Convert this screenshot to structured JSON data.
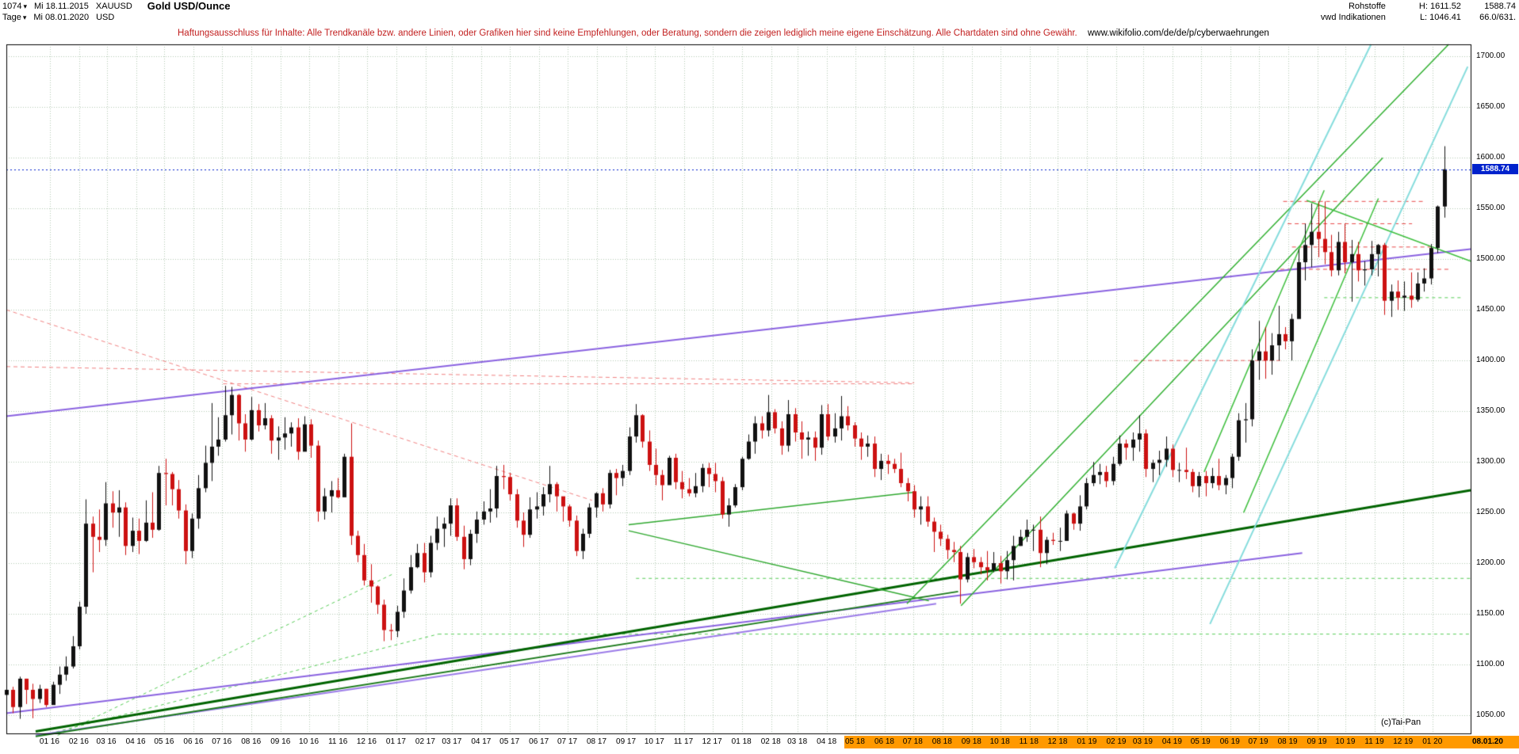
{
  "header": {
    "bars_count": "1074",
    "start_date": "Mi 18.11.2015",
    "symbol": "XAUUSD",
    "period": "Tage",
    "end_date": "Mi 08.01.2020",
    "currency": "USD",
    "title": "Gold USD/Ounce",
    "category": "Rohstoffe",
    "provider": "vwd Indikationen",
    "high_label": "H: 1611.52",
    "low_label": "L: 1046.41",
    "last_price": "1588.74",
    "range_info": "66.0/631."
  },
  "disclaimer": {
    "text": "Haftungsausschluss für Inhalte: Alle Trendkanäle bzw. andere Linien, oder Grafiken hier sind keine Empfehlungen, oder Beratung, sondern die zeigen lediglich meine eigene Einschätzung. Alle Chartdaten sind ohne Gewähr.",
    "url": "www.wikifolio.com/de/de/p/cyberwaehrungen"
  },
  "watermark": "(c)Tai-Pan",
  "chart_data": {
    "type": "candlestick",
    "title": "Gold USD/Ounce",
    "symbol": "XAUUSD",
    "currency": "USD",
    "period": "Tage",
    "range_start": "Mi 18.11.2015",
    "range_end": "Mi 08.01.2020",
    "high": 1611.52,
    "low": 1046.41,
    "last": 1588.74,
    "note": "weekly approximation of daily candles; each candle [high, low, close], open = previous close",
    "first_open": 1070,
    "start_date": "2015-11-16",
    "y_axis": {
      "min": 1032,
      "max": 1712,
      "tick_step": 50,
      "ticks": [
        1050,
        1100,
        1150,
        1200,
        1250,
        1300,
        1350,
        1400,
        1450,
        1500,
        1550,
        1600,
        1650,
        1700
      ]
    },
    "x_axis": {
      "month_labels": [
        "01 16",
        "02 16",
        "03 16",
        "04 16",
        "05 16",
        "06 16",
        "07 16",
        "08 16",
        "09 16",
        "10 16",
        "11 16",
        "12 16",
        "01 17",
        "02 17",
        "03 17",
        "04 17",
        "05 17",
        "06 17",
        "07 17",
        "08 17",
        "09 17",
        "10 17",
        "11 17",
        "12 17",
        "01 18",
        "02 18",
        "03 18",
        "04 18",
        "05 18",
        "06 18",
        "07 18",
        "08 18",
        "09 18",
        "10 18",
        "11 18",
        "12 18",
        "01 19",
        "02 19",
        "03 19",
        "04 19",
        "05 19",
        "06 19",
        "07 19",
        "08 19",
        "09 19",
        "10 19",
        "11 19",
        "12 19",
        "01 20"
      ],
      "highlight_from_index": 28,
      "end_label": "08.01.20"
    },
    "current_price_line": {
      "value": 1588.74,
      "color": "#0022CC"
    },
    "colors": {
      "grid": "#B2C9B2",
      "candle_up": "#111111",
      "candle_down": "#CC1111",
      "frame": "#000000",
      "accent_blue": "#0022CC",
      "axis_highlight": "#FF9900"
    },
    "candles_hlc": [
      [
        1082,
        1062,
        1075
      ],
      [
        1078,
        1052,
        1058
      ],
      [
        1088,
        1046.4,
        1086
      ],
      [
        1086,
        1061,
        1075
      ],
      [
        1081,
        1047,
        1066
      ],
      [
        1080,
        1062,
        1076
      ],
      [
        1076,
        1058,
        1060
      ],
      [
        1083,
        1061,
        1080
      ],
      [
        1098,
        1071,
        1090
      ],
      [
        1108,
        1084,
        1098
      ],
      [
        1128,
        1096,
        1118
      ],
      [
        1162,
        1115,
        1157
      ],
      [
        1263,
        1150,
        1239
      ],
      [
        1246,
        1191,
        1226
      ],
      [
        1253,
        1211,
        1223
      ],
      [
        1280,
        1217,
        1259
      ],
      [
        1271,
        1235,
        1250
      ],
      [
        1272,
        1226,
        1255
      ],
      [
        1260,
        1208,
        1217
      ],
      [
        1245,
        1211,
        1232
      ],
      [
        1244,
        1209,
        1222
      ],
      [
        1262,
        1221,
        1240
      ],
      [
        1270,
        1225,
        1233
      ],
      [
        1296,
        1232,
        1289
      ],
      [
        1303,
        1257,
        1288
      ],
      [
        1290,
        1257,
        1273
      ],
      [
        1282,
        1244,
        1252
      ],
      [
        1258,
        1199,
        1212
      ],
      [
        1249,
        1205,
        1244
      ],
      [
        1287,
        1234,
        1274
      ],
      [
        1316,
        1270,
        1299
      ],
      [
        1358,
        1281,
        1315
      ],
      [
        1344,
        1306,
        1322
      ],
      [
        1375,
        1320,
        1346
      ],
      [
        1374,
        1327,
        1366
      ],
      [
        1367,
        1321,
        1338
      ],
      [
        1347,
        1310,
        1322
      ],
      [
        1364,
        1321,
        1351
      ],
      [
        1357,
        1330,
        1336
      ],
      [
        1358,
        1332,
        1343
      ],
      [
        1346,
        1308,
        1321
      ],
      [
        1335,
        1302,
        1324
      ],
      [
        1344,
        1312,
        1328
      ],
      [
        1339,
        1315,
        1334
      ],
      [
        1343,
        1302,
        1310
      ],
      [
        1345,
        1319,
        1337
      ],
      [
        1342,
        1304,
        1316
      ],
      [
        1321,
        1241,
        1251
      ],
      [
        1274,
        1243,
        1266
      ],
      [
        1281,
        1250,
        1272
      ],
      [
        1284,
        1264,
        1265
      ],
      [
        1308,
        1271,
        1305
      ],
      [
        1338,
        1218,
        1227
      ],
      [
        1232,
        1201,
        1208
      ],
      [
        1219,
        1178,
        1183
      ],
      [
        1199,
        1161,
        1177
      ],
      [
        1178,
        1150,
        1159
      ],
      [
        1164,
        1123,
        1134
      ],
      [
        1140,
        1124,
        1133
      ],
      [
        1158,
        1127,
        1152
      ],
      [
        1185,
        1146,
        1173
      ],
      [
        1208,
        1170,
        1196
      ],
      [
        1219,
        1195,
        1210
      ],
      [
        1220,
        1181,
        1191
      ],
      [
        1227,
        1186,
        1220
      ],
      [
        1246,
        1213,
        1234
      ],
      [
        1245,
        1216,
        1239
      ],
      [
        1264,
        1227,
        1257
      ],
      [
        1264,
        1222,
        1226
      ],
      [
        1237,
        1194,
        1204
      ],
      [
        1233,
        1198,
        1229
      ],
      [
        1251,
        1220,
        1243
      ],
      [
        1261,
        1238,
        1251
      ],
      [
        1273,
        1240,
        1254
      ],
      [
        1296,
        1245,
        1286
      ],
      [
        1297,
        1273,
        1285
      ],
      [
        1289,
        1262,
        1268
      ],
      [
        1273,
        1235,
        1242
      ],
      [
        1250,
        1216,
        1228
      ],
      [
        1265,
        1225,
        1253
      ],
      [
        1270,
        1244,
        1256
      ],
      [
        1275,
        1247,
        1268
      ],
      [
        1296,
        1260,
        1278
      ],
      [
        1280,
        1251,
        1266
      ],
      [
        1260,
        1241,
        1256
      ],
      [
        1258,
        1236,
        1242
      ],
      [
        1247,
        1207,
        1212
      ],
      [
        1234,
        1204,
        1229
      ],
      [
        1259,
        1225,
        1255
      ],
      [
        1270,
        1245,
        1269
      ],
      [
        1274,
        1251,
        1258
      ],
      [
        1292,
        1254,
        1289
      ],
      [
        1293,
        1267,
        1284
      ],
      [
        1297,
        1276,
        1291
      ],
      [
        1334,
        1287,
        1325
      ],
      [
        1357,
        1319,
        1346
      ],
      [
        1347,
        1314,
        1320
      ],
      [
        1331,
        1291,
        1297
      ],
      [
        1313,
        1277,
        1287
      ],
      [
        1292,
        1262,
        1277
      ],
      [
        1306,
        1278,
        1304
      ],
      [
        1308,
        1273,
        1280
      ],
      [
        1291,
        1264,
        1273
      ],
      [
        1284,
        1266,
        1269
      ],
      [
        1289,
        1265,
        1276
      ],
      [
        1298,
        1270,
        1294
      ],
      [
        1299,
        1275,
        1288
      ],
      [
        1299,
        1270,
        1281
      ],
      [
        1285,
        1244,
        1248
      ],
      [
        1264,
        1236,
        1257
      ],
      [
        1278,
        1255,
        1275
      ],
      [
        1305,
        1272,
        1303
      ],
      [
        1327,
        1302,
        1320
      ],
      [
        1345,
        1308,
        1338
      ],
      [
        1345,
        1323,
        1331
      ],
      [
        1366,
        1325,
        1349
      ],
      [
        1352,
        1328,
        1333
      ],
      [
        1340,
        1307,
        1316
      ],
      [
        1361,
        1310,
        1347
      ],
      [
        1353,
        1320,
        1329
      ],
      [
        1340,
        1303,
        1322
      ],
      [
        1330,
        1306,
        1324
      ],
      [
        1330,
        1301,
        1314
      ],
      [
        1356,
        1307,
        1347
      ],
      [
        1357,
        1321,
        1325
      ],
      [
        1348,
        1319,
        1333
      ],
      [
        1365,
        1321,
        1345
      ],
      [
        1355,
        1331,
        1336
      ],
      [
        1339,
        1315,
        1323
      ],
      [
        1329,
        1302,
        1315
      ],
      [
        1326,
        1305,
        1318
      ],
      [
        1325,
        1285,
        1293
      ],
      [
        1308,
        1282,
        1301
      ],
      [
        1307,
        1288,
        1298
      ],
      [
        1303,
        1289,
        1293
      ],
      [
        1309,
        1275,
        1279
      ],
      [
        1284,
        1261,
        1271
      ],
      [
        1277,
        1245,
        1253
      ],
      [
        1266,
        1238,
        1256
      ],
      [
        1266,
        1236,
        1241
      ],
      [
        1245,
        1211,
        1231
      ],
      [
        1238,
        1217,
        1224
      ],
      [
        1228,
        1204,
        1213
      ],
      [
        1221,
        1201,
        1211
      ],
      [
        1217,
        1160,
        1184
      ],
      [
        1210,
        1181,
        1206
      ],
      [
        1214,
        1195,
        1201
      ],
      [
        1206,
        1189,
        1196
      ],
      [
        1212,
        1183,
        1193
      ],
      [
        1211,
        1191,
        1200
      ],
      [
        1207,
        1180,
        1192
      ],
      [
        1212,
        1184,
        1203
      ],
      [
        1227,
        1183,
        1217
      ],
      [
        1233,
        1217,
        1226
      ],
      [
        1243,
        1221,
        1233
      ],
      [
        1238,
        1212,
        1233
      ],
      [
        1246,
        1196,
        1210
      ],
      [
        1226,
        1199,
        1223
      ],
      [
        1230,
        1218,
        1222
      ],
      [
        1235,
        1212,
        1222
      ],
      [
        1252,
        1222,
        1249
      ],
      [
        1250,
        1233,
        1239
      ],
      [
        1267,
        1232,
        1256
      ],
      [
        1284,
        1253,
        1279
      ],
      [
        1300,
        1276,
        1287
      ],
      [
        1298,
        1278,
        1290
      ],
      [
        1296,
        1275,
        1281
      ],
      [
        1305,
        1277,
        1298
      ],
      [
        1326,
        1296,
        1318
      ],
      [
        1322,
        1302,
        1314
      ],
      [
        1329,
        1301,
        1322
      ],
      [
        1346,
        1310,
        1328
      ],
      [
        1332,
        1285,
        1293
      ],
      [
        1302,
        1280,
        1299
      ],
      [
        1311,
        1287,
        1302
      ],
      [
        1325,
        1295,
        1313
      ],
      [
        1317,
        1285,
        1292
      ],
      [
        1299,
        1280,
        1292
      ],
      [
        1314,
        1283,
        1290
      ],
      [
        1293,
        1270,
        1276
      ],
      [
        1290,
        1265,
        1286
      ],
      [
        1291,
        1266,
        1279
      ],
      [
        1294,
        1274,
        1286
      ],
      [
        1303,
        1272,
        1277
      ],
      [
        1287,
        1268,
        1284
      ],
      [
        1308,
        1274,
        1305
      ],
      [
        1348,
        1301,
        1341
      ],
      [
        1358,
        1319,
        1342
      ],
      [
        1411,
        1335,
        1400
      ],
      [
        1439,
        1381,
        1409
      ],
      [
        1433,
        1382,
        1400
      ],
      [
        1427,
        1386,
        1415
      ],
      [
        1454,
        1400,
        1426
      ],
      [
        1433,
        1411,
        1419
      ],
      [
        1446,
        1400,
        1441
      ],
      [
        1510,
        1442,
        1497
      ],
      [
        1535,
        1479,
        1514
      ],
      [
        1555,
        1492,
        1527
      ],
      [
        1557,
        1502,
        1520
      ],
      [
        1557,
        1495,
        1507
      ],
      [
        1524,
        1483,
        1489
      ],
      [
        1527,
        1484,
        1517
      ],
      [
        1535,
        1486,
        1497
      ],
      [
        1519,
        1458,
        1505
      ],
      [
        1517,
        1478,
        1489
      ],
      [
        1498,
        1474,
        1490
      ],
      [
        1518,
        1484,
        1505
      ],
      [
        1515,
        1483,
        1514
      ],
      [
        1516,
        1445,
        1459
      ],
      [
        1475,
        1443,
        1468
      ],
      [
        1479,
        1450,
        1462
      ],
      [
        1478,
        1449,
        1464
      ],
      [
        1487,
        1452,
        1460
      ],
      [
        1487,
        1458,
        1476
      ],
      [
        1491,
        1468,
        1481
      ],
      [
        1515,
        1475,
        1511
      ],
      [
        1553,
        1506,
        1552
      ],
      [
        1611.5,
        1541,
        1588.7
      ]
    ],
    "trend_lines": [
      {
        "t1": 0,
        "p1": 1345,
        "t2": 1,
        "p2": 1510,
        "c": "#8A62E0",
        "w": 2
      },
      {
        "t1": 0,
        "p1": 1052,
        "t2": 0.885,
        "p2": 1210,
        "c": "#8A62E0",
        "w": 2
      },
      {
        "t1": 0.02,
        "p1": 1030,
        "t2": 0.635,
        "p2": 1160,
        "c": "#9B7BE8",
        "w": 2
      },
      {
        "t1": 0.02,
        "p1": 1034,
        "t2": 1,
        "p2": 1272,
        "c": "#006400",
        "w": 3
      },
      {
        "t1": 0.02,
        "p1": 1029,
        "t2": 0.65,
        "p2": 1172,
        "c": "#1B7A1B",
        "w": 2
      },
      {
        "t1": 0.615,
        "p1": 1160,
        "t2": 0.985,
        "p2": 1712,
        "c": "#2FAF2F",
        "w": 1.5
      },
      {
        "t1": 0.652,
        "p1": 1158,
        "t2": 0.94,
        "p2": 1600,
        "c": "#2FAF2F",
        "w": 1.5
      },
      {
        "t1": 0.818,
        "p1": 1290,
        "t2": 0.9,
        "p2": 1568,
        "c": "#3FBF3F",
        "w": 1.5
      },
      {
        "t1": 0.845,
        "p1": 1250,
        "t2": 0.937,
        "p2": 1560,
        "c": "#3FBF3F",
        "w": 1.5
      },
      {
        "t1": 0.425,
        "p1": 1238,
        "t2": 0.62,
        "p2": 1270,
        "c": "#2FA82F",
        "w": 1.5
      },
      {
        "t1": 0.425,
        "p1": 1232,
        "t2": 0.63,
        "p2": 1163,
        "c": "#2FA82F",
        "w": 1.5
      },
      {
        "t1": 0.757,
        "p1": 1195,
        "t2": 0.932,
        "p2": 1712,
        "c": "#85DCDC",
        "w": 2
      },
      {
        "t1": 0.822,
        "p1": 1140,
        "t2": 0.998,
        "p2": 1690,
        "c": "#85DCDC",
        "w": 2
      },
      {
        "t1": 0.888,
        "p1": 1558,
        "t2": 1,
        "p2": 1498,
        "c": "#3FBF3F",
        "w": 1.5
      }
    ],
    "dashed_lines": [
      {
        "t1": 0,
        "p1": 1450,
        "t2": 0.4,
        "p2": 1262,
        "c": "#F08080",
        "w": 1,
        "d": [
          5,
          4
        ]
      },
      {
        "t1": 0,
        "p1": 1394,
        "t2": 0.62,
        "p2": 1378,
        "c": "#F08080",
        "w": 1,
        "d": [
          5,
          4
        ]
      },
      {
        "t1": 0.148,
        "p1": 1377,
        "t2": 0.62,
        "p2": 1377,
        "c": "#F08080",
        "w": 1,
        "d": [
          5,
          4
        ]
      },
      {
        "t1": 0.77,
        "p1": 1400,
        "t2": 0.87,
        "p2": 1400,
        "c": "#E86060",
        "w": 1,
        "d": [
          5,
          4
        ]
      },
      {
        "t1": 0.872,
        "p1": 1557,
        "t2": 0.968,
        "p2": 1557,
        "c": "#E84848",
        "w": 1,
        "d": [
          5,
          4
        ]
      },
      {
        "t1": 0.875,
        "p1": 1535,
        "t2": 0.96,
        "p2": 1535,
        "c": "#E84848",
        "w": 1,
        "d": [
          5,
          4
        ]
      },
      {
        "t1": 0.878,
        "p1": 1512,
        "t2": 0.975,
        "p2": 1512,
        "c": "#E84848",
        "w": 1,
        "d": [
          5,
          4
        ]
      },
      {
        "t1": 0.87,
        "p1": 1490,
        "t2": 0.985,
        "p2": 1490,
        "c": "#E84848",
        "w": 1,
        "d": [
          5,
          4
        ]
      },
      {
        "t1": 0.295,
        "p1": 1130,
        "t2": 1,
        "p2": 1130,
        "c": "#57CC57",
        "w": 1,
        "d": [
          4,
          4
        ]
      },
      {
        "t1": 0.43,
        "p1": 1185,
        "t2": 1,
        "p2": 1185,
        "c": "#57CC57",
        "w": 1,
        "d": [
          4,
          4
        ]
      },
      {
        "t1": 0.9,
        "p1": 1462,
        "t2": 0.995,
        "p2": 1462,
        "c": "#57CC57",
        "w": 1,
        "d": [
          4,
          4
        ]
      },
      {
        "t1": 0.03,
        "p1": 1032,
        "t2": 0.295,
        "p2": 1130,
        "c": "#57CC57",
        "w": 1,
        "d": [
          4,
          4
        ]
      },
      {
        "t1": 0.035,
        "p1": 1030,
        "t2": 0.265,
        "p2": 1190,
        "c": "#57CC57",
        "w": 1,
        "d": [
          4,
          4
        ]
      }
    ]
  }
}
